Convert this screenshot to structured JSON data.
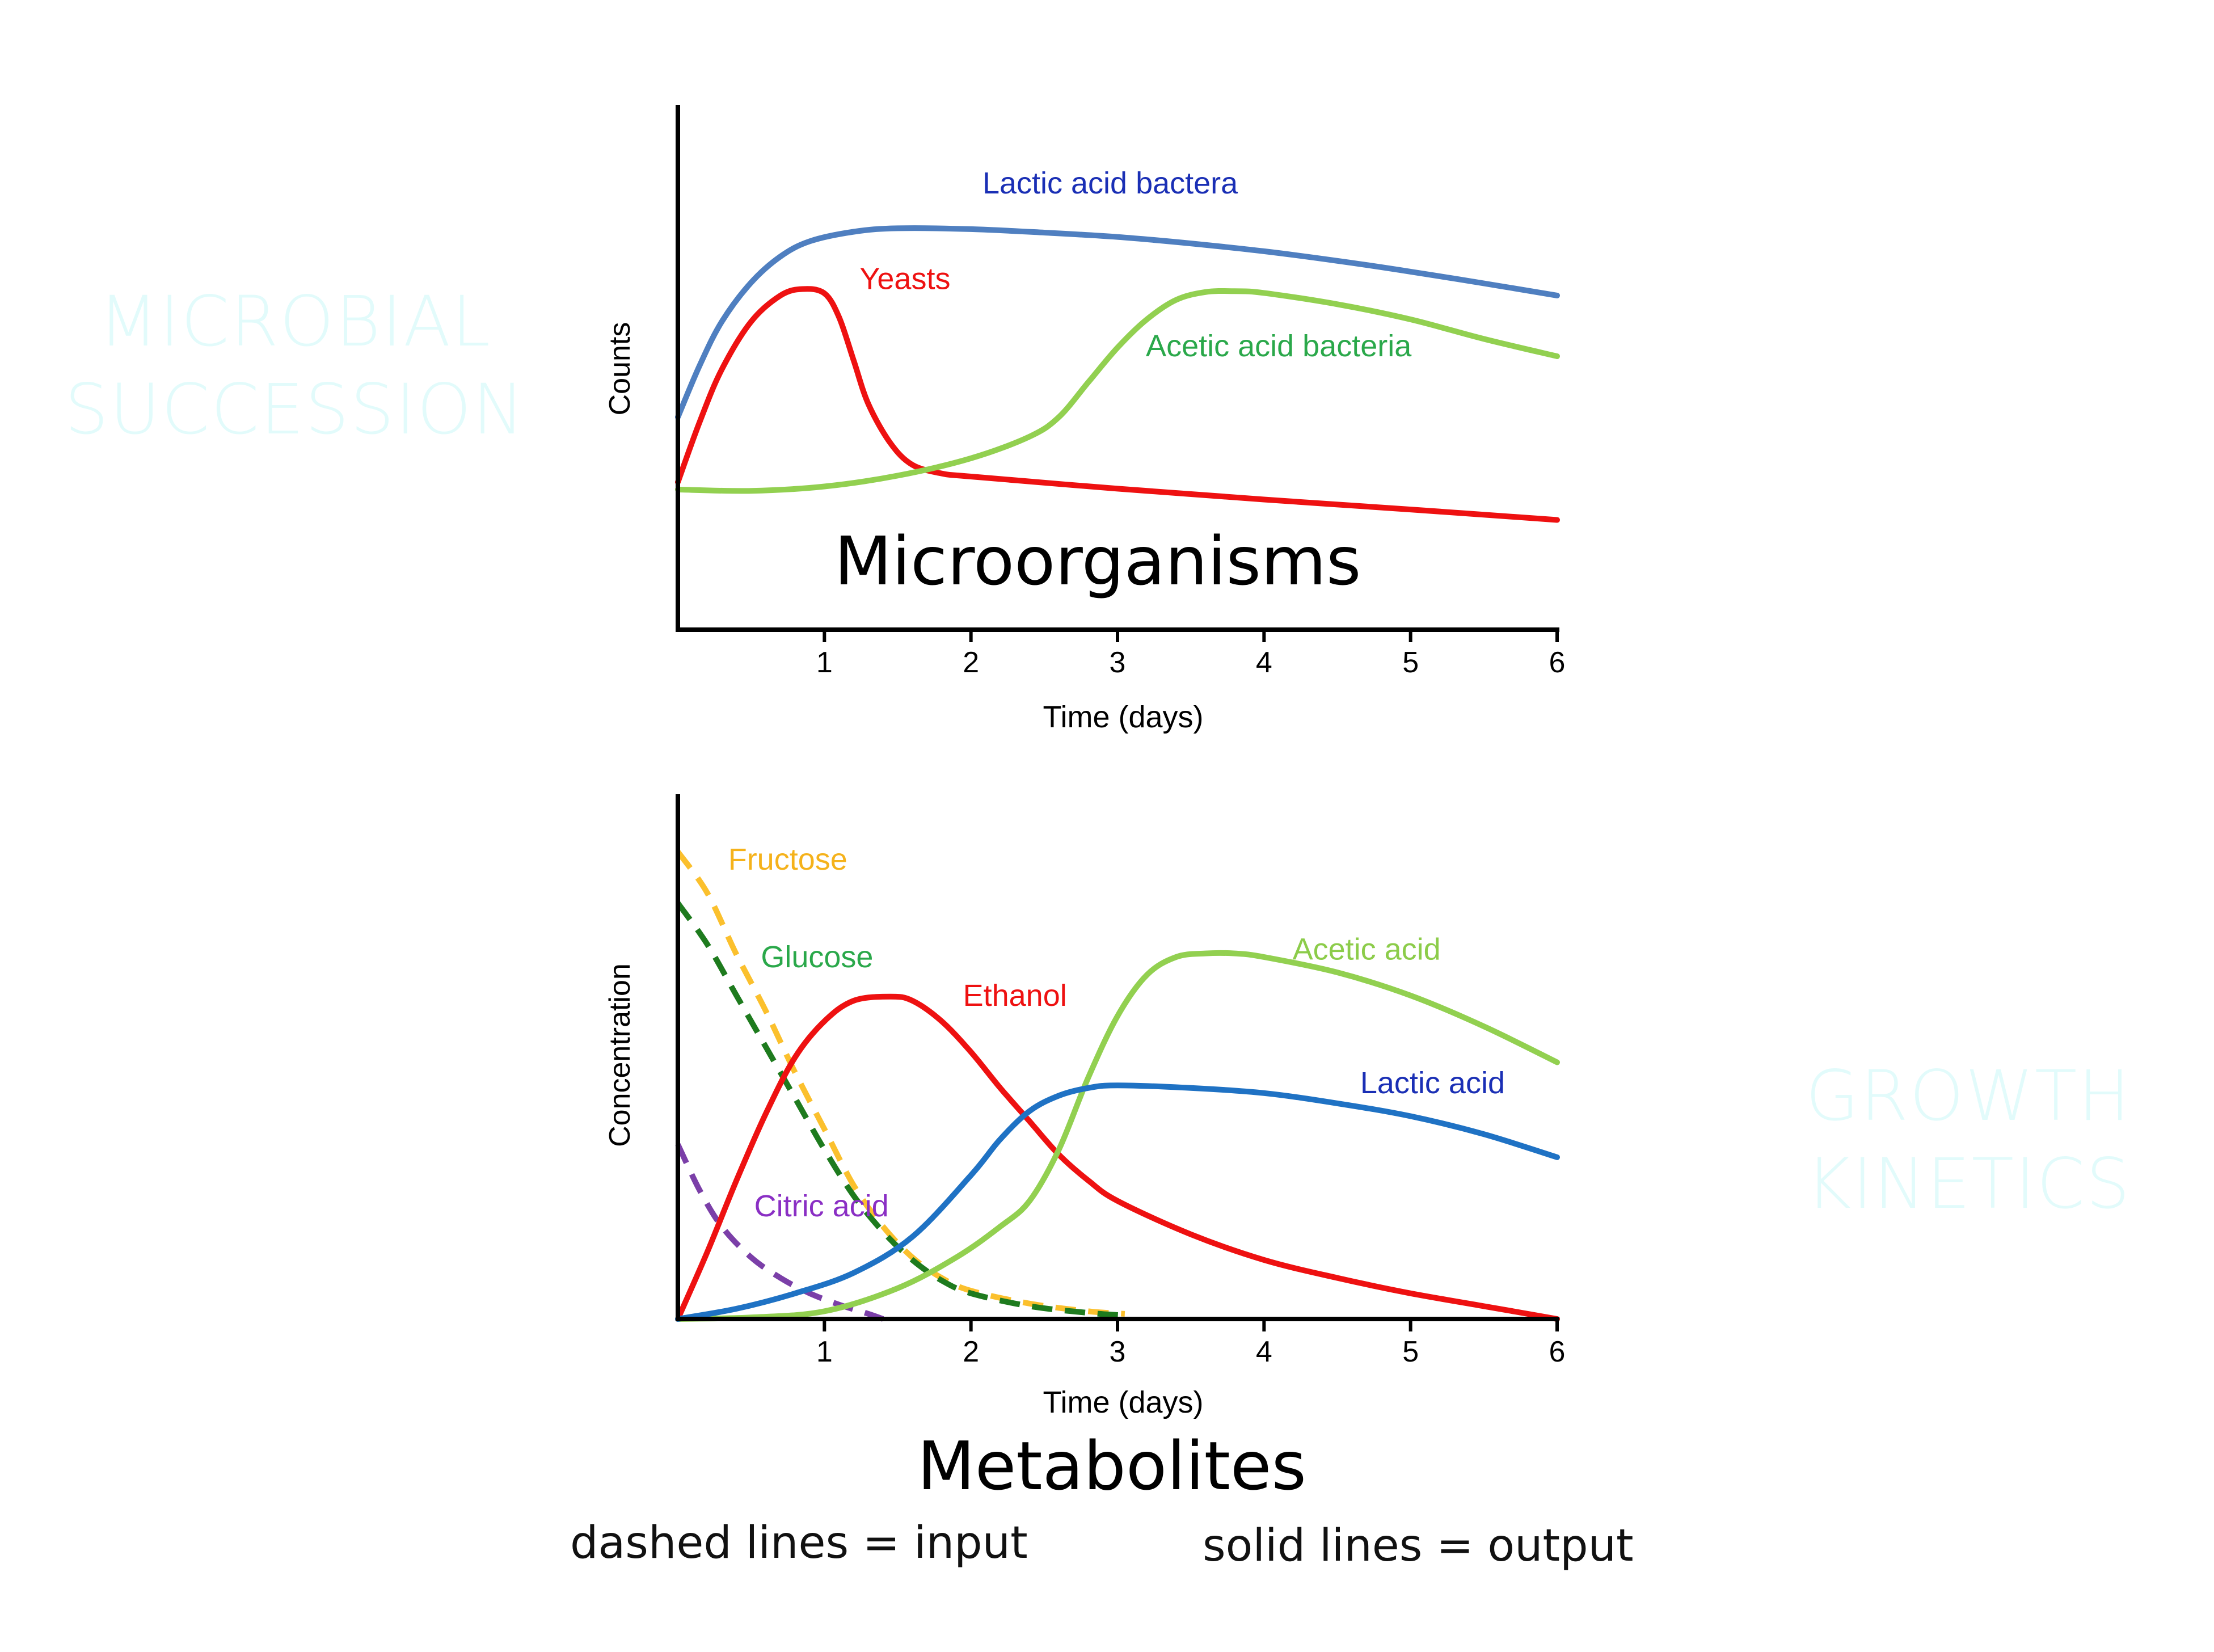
{
  "slide": {
    "left_title": [
      "MICROBIAL",
      "SUCCESSION"
    ],
    "right_title": [
      "GROWTH",
      "KINETICS"
    ],
    "legend_dashed": "dashed lines = input",
    "legend_solid": "solid lines = output"
  },
  "colors": {
    "lactic_bacteria": "#4f7fc0",
    "yeasts": "#ee1111",
    "acetic_bacteria": "#92d050",
    "fructose": "#fbc02d",
    "glucose": "#1e7b1e",
    "ethanol": "#ee1111",
    "acetic_acid": "#92d050",
    "lactic_acid": "#1f72c4",
    "citric_acid": "#7b3fa8",
    "label_blue": "#1a2fb5",
    "label_green": "#2aa84a",
    "label_orange": "#f5b21b",
    "label_purple": "#8a2fc4",
    "label_light_green": "#8ccc4a"
  },
  "chart_data": [
    {
      "type": "line",
      "title": "Microorganisms",
      "xlabel": "Time (days)",
      "ylabel": "Counts",
      "xlim": [
        0,
        6
      ],
      "ylim": [
        0,
        100
      ],
      "xticks": [
        1,
        2,
        3,
        4,
        5,
        6
      ],
      "grid": false,
      "series": [
        {
          "name": "Lactic acid bactera",
          "style": "solid",
          "color_key": "lactic_bacteria",
          "label_color_key": "label_blue",
          "label_at": [
            2.95,
            100.5
          ],
          "points": [
            [
              0,
              49
            ],
            [
              0.15,
              61
            ],
            [
              0.3,
              71
            ],
            [
              0.5,
              80
            ],
            [
              0.7,
              86
            ],
            [
              0.9,
              89.5
            ],
            [
              1.2,
              91.7
            ],
            [
              1.5,
              92.5
            ],
            [
              2,
              92.3
            ],
            [
              2.5,
              91.5
            ],
            [
              3,
              90.5
            ],
            [
              3.5,
              89
            ],
            [
              4,
              87.2
            ],
            [
              4.5,
              85
            ],
            [
              5,
              82.5
            ],
            [
              5.5,
              79.8
            ],
            [
              6,
              77
            ]
          ]
        },
        {
          "name": "Yeasts",
          "style": "solid",
          "color_key": "yeasts",
          "label_color_key": "label_red",
          "label_at": [
            1.55,
            78.5
          ],
          "points": [
            [
              0,
              34
            ],
            [
              0.15,
              48
            ],
            [
              0.3,
              60
            ],
            [
              0.5,
              71
            ],
            [
              0.7,
              77
            ],
            [
              0.85,
              78.5
            ],
            [
              1,
              77.5
            ],
            [
              1.1,
              72
            ],
            [
              1.2,
              62
            ],
            [
              1.3,
              52
            ],
            [
              1.45,
              43
            ],
            [
              1.6,
              38
            ],
            [
              1.8,
              36
            ],
            [
              2,
              35.3
            ],
            [
              3,
              32.5
            ],
            [
              4,
              30
            ],
            [
              5,
              27.7
            ],
            [
              6,
              25.3
            ]
          ]
        },
        {
          "name": "Acetic acid bacteria",
          "style": "solid",
          "color_key": "acetic_bacteria",
          "label_color_key": "label_green",
          "label_at": [
            4.1,
            63
          ],
          "points": [
            [
              0,
              32.3
            ],
            [
              0.5,
              32
            ],
            [
              1,
              33
            ],
            [
              1.5,
              35.5
            ],
            [
              2,
              39.5
            ],
            [
              2.4,
              44.5
            ],
            [
              2.6,
              49
            ],
            [
              2.8,
              57
            ],
            [
              3,
              65
            ],
            [
              3.2,
              71.5
            ],
            [
              3.4,
              76
            ],
            [
              3.6,
              77.8
            ],
            [
              3.8,
              78
            ],
            [
              4,
              77.6
            ],
            [
              4.5,
              75
            ],
            [
              5,
              71.5
            ],
            [
              5.5,
              67
            ],
            [
              6,
              63
            ]
          ]
        }
      ]
    },
    {
      "type": "line",
      "title": "Metabolites",
      "xlabel": "Time (days)",
      "ylabel": "Concentration",
      "xlim": [
        0,
        6
      ],
      "ylim": [
        0,
        100
      ],
      "xticks": [
        1,
        2,
        3,
        4,
        5,
        6
      ],
      "grid": false,
      "series": [
        {
          "name": "Fructose",
          "style": "dashed",
          "color_key": "fructose",
          "label_color_key": "label_orange",
          "label_at": [
            0.75,
            87.5
          ],
          "points": [
            [
              0,
              91
            ],
            [
              0.2,
              83
            ],
            [
              0.4,
              71
            ],
            [
              0.6,
              60
            ],
            [
              0.8,
              48
            ],
            [
              1,
              37
            ],
            [
              1.2,
              26
            ],
            [
              1.4,
              18
            ],
            [
              1.6,
              12
            ],
            [
              1.8,
              8
            ],
            [
              2,
              5.5
            ],
            [
              2.4,
              3
            ],
            [
              2.8,
              1.5
            ],
            [
              3.05,
              1
            ]
          ]
        },
        {
          "name": "Glucose",
          "style": "dashed",
          "color_key": "glucose",
          "label_color_key": "label_green",
          "label_at": [
            0.95,
            68.5
          ],
          "points": [
            [
              0,
              81
            ],
            [
              0.2,
              73
            ],
            [
              0.4,
              63
            ],
            [
              0.6,
              53
            ],
            [
              0.8,
              43
            ],
            [
              1,
              33
            ],
            [
              1.2,
              24
            ],
            [
              1.4,
              17
            ],
            [
              1.6,
              11.5
            ],
            [
              1.8,
              7.5
            ],
            [
              2,
              5
            ],
            [
              2.4,
              2.5
            ],
            [
              2.8,
              1.2
            ],
            [
              3.05,
              0.7
            ]
          ]
        },
        {
          "name": "Citric acid",
          "style": "dashed",
          "color_key": "citric_acid",
          "label_color_key": "label_purple",
          "label_at": [
            0.98,
            20
          ],
          "points": [
            [
              0,
              34
            ],
            [
              0.15,
              25
            ],
            [
              0.3,
              18
            ],
            [
              0.5,
              12
            ],
            [
              0.7,
              8
            ],
            [
              0.9,
              5
            ],
            [
              1.1,
              2.8
            ],
            [
              1.3,
              1
            ],
            [
              1.4,
              0
            ]
          ]
        },
        {
          "name": "Ethanol",
          "style": "solid",
          "color_key": "ethanol",
          "label_color_key": "label_red",
          "label_at": [
            2.3,
            61
          ],
          "points": [
            [
              0,
              0
            ],
            [
              0.2,
              13
            ],
            [
              0.4,
              27
            ],
            [
              0.6,
              40
            ],
            [
              0.8,
              51
            ],
            [
              1,
              58
            ],
            [
              1.2,
              62
            ],
            [
              1.45,
              62.8
            ],
            [
              1.6,
              62
            ],
            [
              1.8,
              58
            ],
            [
              2,
              52
            ],
            [
              2.2,
              45
            ],
            [
              2.4,
              38.5
            ],
            [
              2.6,
              32
            ],
            [
              2.8,
              27
            ],
            [
              3,
              23
            ],
            [
              3.5,
              16.5
            ],
            [
              4,
              11.5
            ],
            [
              4.5,
              8
            ],
            [
              5,
              5
            ],
            [
              5.5,
              2.5
            ],
            [
              6,
              0
            ]
          ]
        },
        {
          "name": "Acetic acid",
          "style": "solid",
          "color_key": "acetic_acid",
          "label_color_key": "label_light_green",
          "label_at": [
            4.7,
            70
          ],
          "points": [
            [
              0,
              0
            ],
            [
              0.5,
              0.3
            ],
            [
              1,
              1.5
            ],
            [
              1.5,
              6
            ],
            [
              1.9,
              12
            ],
            [
              2.2,
              18
            ],
            [
              2.4,
              23
            ],
            [
              2.6,
              33
            ],
            [
              2.8,
              47
            ],
            [
              3,
              59
            ],
            [
              3.2,
              67
            ],
            [
              3.4,
              70.5
            ],
            [
              3.6,
              71.2
            ],
            [
              3.8,
              71.2
            ],
            [
              4,
              70.5
            ],
            [
              4.5,
              67.5
            ],
            [
              5,
              63
            ],
            [
              5.5,
              57
            ],
            [
              6,
              50
            ]
          ]
        },
        {
          "name": "Lactic acid",
          "style": "solid",
          "color_key": "lactic_acid",
          "label_color_key": "label_blue",
          "label_at": [
            5.15,
            44
          ],
          "points": [
            [
              0,
              0
            ],
            [
              0.4,
              2
            ],
            [
              0.8,
              5
            ],
            [
              1.2,
              9
            ],
            [
              1.6,
              16
            ],
            [
              2,
              28
            ],
            [
              2.2,
              35
            ],
            [
              2.4,
              40.5
            ],
            [
              2.6,
              43.5
            ],
            [
              2.8,
              45
            ],
            [
              3,
              45.5
            ],
            [
              3.5,
              45
            ],
            [
              4,
              44
            ],
            [
              4.5,
              42
            ],
            [
              5,
              39.5
            ],
            [
              5.5,
              36
            ],
            [
              6,
              31.5
            ]
          ]
        }
      ]
    }
  ]
}
